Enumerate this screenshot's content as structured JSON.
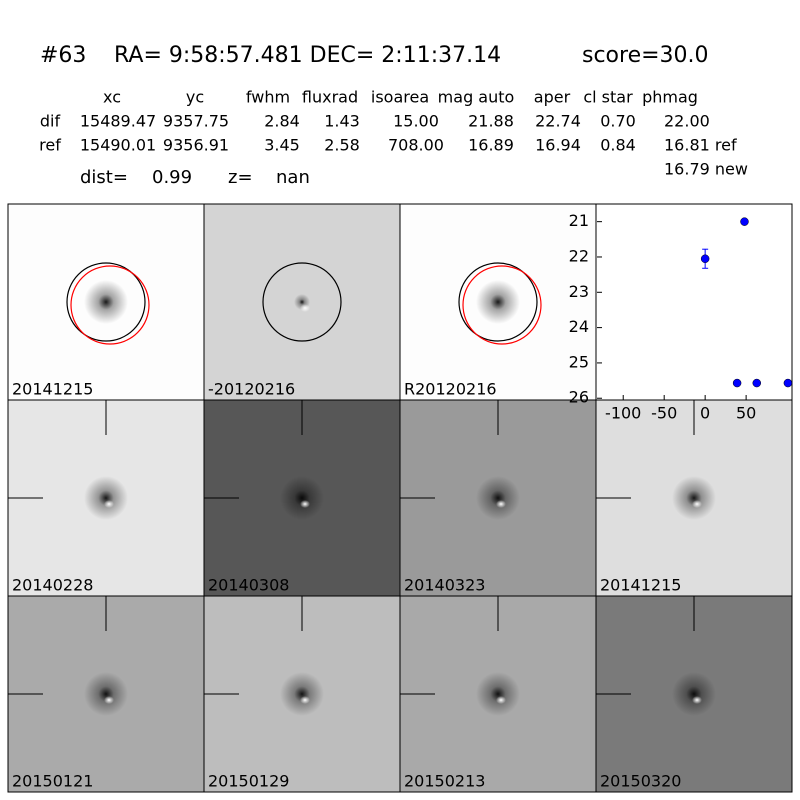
{
  "header": {
    "id": "#63",
    "coords": "RA= 9:58:57.481 DEC= 2:11:37.14",
    "score": "score=30.0"
  },
  "table": {
    "columns": [
      "xc",
      "yc",
      "fwhm",
      "fluxrad",
      "isoarea",
      "mag auto",
      "aper",
      "cl star",
      "phmag"
    ],
    "rows": [
      [
        "dif",
        "15489.47",
        "9357.75",
        "2.84",
        "1.43",
        "15.00",
        "21.88",
        "22.74",
        "0.70",
        "22.00"
      ],
      [
        "ref",
        "15490.01",
        "9356.91",
        "3.45",
        "2.58",
        "708.00",
        "16.89",
        "16.94",
        "0.84",
        "16.81 ref"
      ]
    ],
    "extra": "16.79 new"
  },
  "dist": {
    "label": "dist=",
    "value": "0.99"
  },
  "z": {
    "label": "z=",
    "value": "nan"
  },
  "stamps": [
    {
      "label": "20141215"
    },
    {
      "label": "-20120216"
    },
    {
      "label": "R20120216"
    },
    {
      "label": "20140228"
    },
    {
      "label": "20140308"
    },
    {
      "label": "20140323"
    },
    {
      "label": "20141215",
      "color": "#ff0000"
    },
    {
      "label": "20150121"
    },
    {
      "label": "20150129"
    },
    {
      "label": "20150213"
    },
    {
      "label": "20150320"
    }
  ],
  "chart_data": {
    "type": "scatter",
    "x": [
      0,
      48,
      39,
      63,
      101
    ],
    "values": [
      22.05,
      21.0,
      25.57,
      25.57,
      25.57
    ],
    "errors": [
      0.27,
      0.05,
      0.05,
      0.05,
      0.05
    ],
    "color": "#0000ff",
    "xlim": [
      -132,
      106
    ],
    "ylim": [
      26.05,
      20.5
    ],
    "xticks": [
      -100,
      -50,
      0,
      50
    ],
    "yticks": [
      21,
      22,
      23,
      24,
      25,
      26
    ]
  }
}
